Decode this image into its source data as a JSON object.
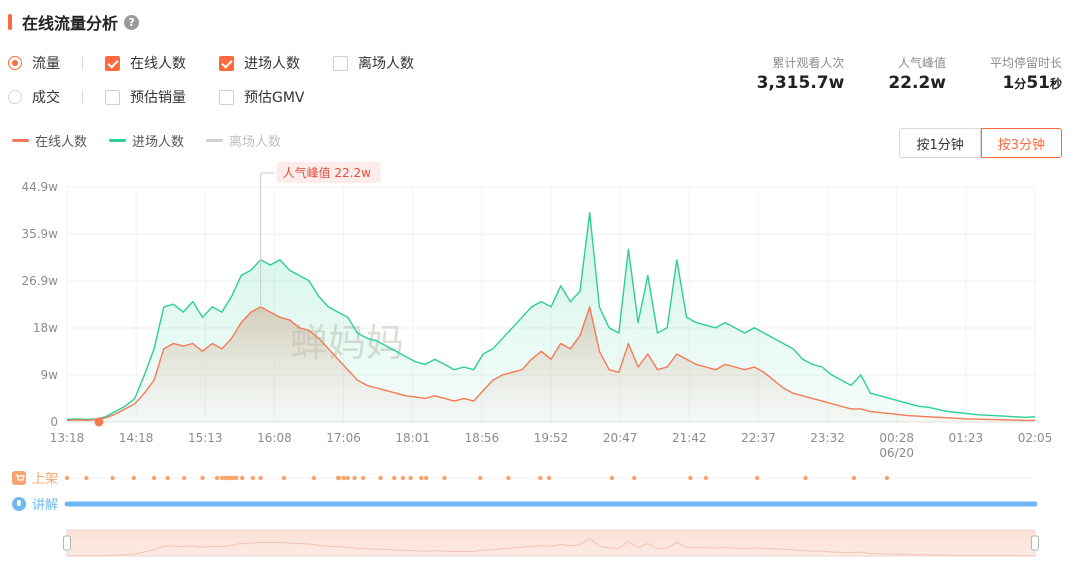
{
  "header": {
    "title": "在线流量分析",
    "help_icon": "?"
  },
  "filters": {
    "row1": {
      "radio": {
        "label": "流量",
        "checked": true
      },
      "checks": [
        {
          "label": "在线人数",
          "checked": true
        },
        {
          "label": "进场人数",
          "checked": true
        },
        {
          "label": "离场人数",
          "checked": false
        }
      ]
    },
    "row2": {
      "radio": {
        "label": "成交",
        "checked": false
      },
      "checks": [
        {
          "label": "预估销量",
          "checked": false
        },
        {
          "label": "预估GMV",
          "checked": false
        }
      ]
    }
  },
  "stats": {
    "total_views": {
      "label": "累计观看人次",
      "value": "3,315.7w"
    },
    "peak": {
      "label": "人气峰值",
      "value": "22.2w"
    },
    "avg_stay": {
      "label": "平均停留时长",
      "value_min": "1",
      "unit_min": "分",
      "value_sec": "51",
      "unit_sec": "秒"
    }
  },
  "legend": [
    {
      "label": "在线人数",
      "color": "#f47a55",
      "muted": false
    },
    {
      "label": "进场人数",
      "color": "#2ecf95",
      "muted": false
    },
    {
      "label": "离场人数",
      "color": "#d0d0d0",
      "muted": true
    }
  ],
  "toggle": {
    "options": [
      "按1分钟",
      "按3分钟"
    ],
    "active_index": 1
  },
  "watermark": "蝉妈妈",
  "events": {
    "listing_label": "上架",
    "explain_label": "讲解",
    "listing_color": "#f7a46e",
    "explain_color": "#6fb8f5"
  },
  "chart_data": {
    "type": "area",
    "peak_annotation": "人气峰值 22.2w",
    "y_ticks": [
      "0",
      "9w",
      "18w",
      "26.9w",
      "35.9w",
      "44.9w"
    ],
    "ylim": [
      0,
      44.9
    ],
    "x_ticks": [
      "13:18",
      "14:18",
      "15:13",
      "16:08",
      "17:06",
      "18:01",
      "18:56",
      "19:52",
      "20:47",
      "21:42",
      "22:37",
      "23:32",
      "00:28",
      "01:23",
      "02:05"
    ],
    "x_sub_label": "06/20",
    "series": [
      {
        "name": "进场人数",
        "color": "#2ecf95",
        "values": [
          0.5,
          0.6,
          0.5,
          0.6,
          1.0,
          2.0,
          3.0,
          4.5,
          9.0,
          14.0,
          22.0,
          22.5,
          21.0,
          23.0,
          20.0,
          22.0,
          21.0,
          24.0,
          28.0,
          29.0,
          31.0,
          30.0,
          31.0,
          29.0,
          28.0,
          27.0,
          24.0,
          22.0,
          21.0,
          20.0,
          17.0,
          16.0,
          15.5,
          14.5,
          13.5,
          12.5,
          11.5,
          11.0,
          12.0,
          11.0,
          10.0,
          10.5,
          10.0,
          13.0,
          14.0,
          16.0,
          18.0,
          20.0,
          22.0,
          23.0,
          22.0,
          26.0,
          23.0,
          25.0,
          40.0,
          22.0,
          18.0,
          17.0,
          33.0,
          19.0,
          28.0,
          17.0,
          18.0,
          31.0,
          20.0,
          19.0,
          18.5,
          18.0,
          19.0,
          18.0,
          17.0,
          18.0,
          17.0,
          16.0,
          15.0,
          14.0,
          12.0,
          11.0,
          10.5,
          9.0,
          8.0,
          7.0,
          9.0,
          5.5,
          5.0,
          4.5,
          4.0,
          3.5,
          3.0,
          2.8,
          2.4,
          2.0,
          1.8,
          1.6,
          1.4,
          1.3,
          1.2,
          1.1,
          1.0,
          0.9,
          1.0
        ]
      },
      {
        "name": "在线人数",
        "color": "#f47a55",
        "values": [
          0.3,
          0.4,
          0.3,
          0.5,
          0.8,
          1.5,
          2.5,
          3.5,
          5.5,
          8.0,
          14.0,
          15.0,
          14.5,
          15.0,
          13.5,
          15.0,
          14.0,
          16.0,
          19.0,
          21.0,
          22.0,
          21.0,
          20.0,
          19.5,
          18.0,
          17.5,
          16.0,
          14.0,
          12.0,
          10.0,
          8.0,
          7.0,
          6.5,
          6.0,
          5.5,
          5.0,
          4.8,
          4.5,
          5.0,
          4.5,
          4.0,
          4.5,
          4.0,
          6.0,
          8.0,
          9.0,
          9.5,
          10.0,
          12.0,
          13.5,
          12.0,
          15.0,
          14.0,
          16.5,
          22.0,
          13.5,
          10.0,
          9.5,
          15.0,
          10.5,
          13.0,
          10.0,
          10.5,
          13.0,
          12.0,
          11.0,
          10.5,
          10.0,
          11.0,
          10.5,
          10.0,
          10.5,
          9.5,
          8.0,
          6.5,
          5.5,
          5.0,
          4.5,
          4.0,
          3.5,
          3.0,
          2.5,
          2.5,
          2.0,
          1.8,
          1.6,
          1.4,
          1.2,
          1.1,
          1.0,
          0.9,
          0.8,
          0.7,
          0.6,
          0.55,
          0.5,
          0.45,
          0.4,
          0.35,
          0.3,
          0.3
        ]
      }
    ],
    "listing_events": [
      0.0,
      0.02,
      0.047,
      0.069,
      0.09,
      0.104,
      0.121,
      0.14,
      0.155,
      0.16,
      0.163,
      0.166,
      0.169,
      0.172,
      0.175,
      0.181,
      0.192,
      0.2,
      0.224,
      0.255,
      0.28,
      0.281,
      0.286,
      0.29,
      0.297,
      0.306,
      0.324,
      0.338,
      0.347,
      0.355,
      0.366,
      0.371,
      0.39,
      0.427,
      0.456,
      0.489,
      0.498,
      0.563,
      0.586,
      0.644,
      0.66,
      0.713,
      0.763,
      0.813,
      0.847
    ]
  }
}
